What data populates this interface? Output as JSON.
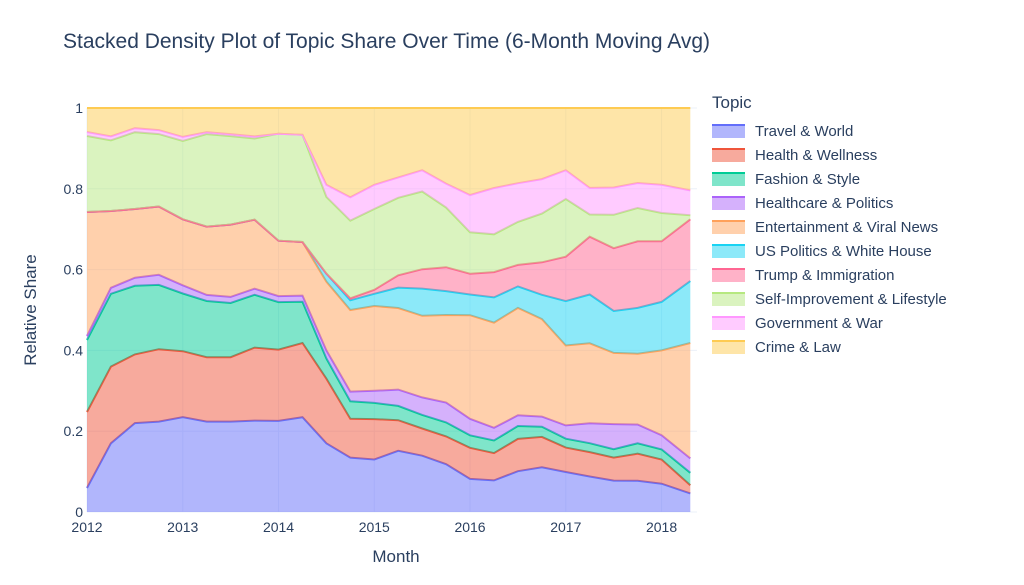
{
  "title": "Stacked Density Plot of Topic Share Over Time (6-Month Moving Avg)",
  "chart_data": {
    "type": "area",
    "stacked": true,
    "normalized": true,
    "title": "Stacked Density Plot of Topic Share Over Time (6-Month Moving Avg)",
    "xlabel": "Month",
    "ylabel": "Relative Share",
    "legend_title": "Topic",
    "legend_position": "right",
    "grid": true,
    "xlim": [
      2012.0,
      2018.37
    ],
    "ylim": [
      0,
      1
    ],
    "x_ticks": [
      "2012",
      "2013",
      "2014",
      "2015",
      "2016",
      "2017",
      "2018"
    ],
    "y_ticks": [
      "0",
      "0.2",
      "0.4",
      "0.6",
      "0.8",
      "1"
    ],
    "x": [
      2012.0,
      2012.25,
      2012.5,
      2012.75,
      2013.0,
      2013.25,
      2013.5,
      2013.75,
      2014.0,
      2014.25,
      2014.5,
      2014.75,
      2015.0,
      2015.25,
      2015.5,
      2015.75,
      2016.0,
      2016.25,
      2016.5,
      2016.75,
      2017.0,
      2017.25,
      2017.5,
      2017.75,
      2018.0,
      2018.3
    ],
    "series": [
      {
        "name": "Travel & World",
        "color": "#636efa",
        "values": [
          0.06,
          0.17,
          0.22,
          0.225,
          0.23,
          0.225,
          0.225,
          0.225,
          0.23,
          0.23,
          0.17,
          0.14,
          0.13,
          0.15,
          0.145,
          0.12,
          0.08,
          0.075,
          0.095,
          0.11,
          0.09,
          0.08,
          0.075,
          0.075,
          0.07,
          0.045
        ]
      },
      {
        "name": "Health & Wellness",
        "color": "#ef553b",
        "values": [
          0.19,
          0.19,
          0.17,
          0.18,
          0.16,
          0.16,
          0.16,
          0.18,
          0.18,
          0.18,
          0.16,
          0.1,
          0.1,
          0.075,
          0.07,
          0.07,
          0.075,
          0.065,
          0.075,
          0.075,
          0.055,
          0.055,
          0.055,
          0.065,
          0.06,
          0.02
        ]
      },
      {
        "name": "Fashion & Style",
        "color": "#00cc96",
        "values": [
          0.18,
          0.18,
          0.17,
          0.16,
          0.14,
          0.14,
          0.135,
          0.13,
          0.12,
          0.1,
          0.05,
          0.045,
          0.04,
          0.035,
          0.035,
          0.035,
          0.03,
          0.03,
          0.03,
          0.025,
          0.02,
          0.02,
          0.02,
          0.025,
          0.025,
          0.03
        ]
      },
      {
        "name": "Healthcare & Politics",
        "color": "#ab63fa",
        "values": [
          0.01,
          0.015,
          0.02,
          0.025,
          0.02,
          0.015,
          0.015,
          0.015,
          0.015,
          0.015,
          0.02,
          0.025,
          0.03,
          0.04,
          0.045,
          0.05,
          0.04,
          0.03,
          0.025,
          0.025,
          0.03,
          0.045,
          0.06,
          0.045,
          0.035,
          0.035
        ]
      },
      {
        "name": "Entertainment & Viral News",
        "color": "#ffa15a",
        "values": [
          0.31,
          0.19,
          0.17,
          0.17,
          0.16,
          0.17,
          0.18,
          0.17,
          0.14,
          0.13,
          0.17,
          0.21,
          0.21,
          0.2,
          0.21,
          0.22,
          0.25,
          0.25,
          0.25,
          0.24,
          0.18,
          0.18,
          0.17,
          0.17,
          0.21,
          0.28
        ]
      },
      {
        "name": "US Politics & White House",
        "color": "#19d3f3",
        "values": [
          0.0,
          0.0,
          0.0,
          0.0,
          0.0,
          0.0,
          0.0,
          0.0,
          0.0,
          0.0,
          0.02,
          0.025,
          0.03,
          0.05,
          0.07,
          0.06,
          0.05,
          0.06,
          0.05,
          0.06,
          0.1,
          0.11,
          0.1,
          0.11,
          0.12,
          0.15
        ]
      },
      {
        "name": "Trump & Immigration",
        "color": "#ff6692",
        "values": [
          0.0,
          0.0,
          0.0,
          0.0,
          0.0,
          0.0,
          0.0,
          0.0,
          0.0,
          0.0,
          0.0,
          0.005,
          0.01,
          0.03,
          0.05,
          0.06,
          0.05,
          0.06,
          0.05,
          0.08,
          0.1,
          0.13,
          0.15,
          0.16,
          0.15,
          0.15
        ]
      },
      {
        "name": "Self-Improvement & Lifestyle",
        "color": "#b6e880",
        "values": [
          0.19,
          0.175,
          0.19,
          0.18,
          0.19,
          0.23,
          0.22,
          0.2,
          0.27,
          0.26,
          0.19,
          0.2,
          0.2,
          0.19,
          0.2,
          0.15,
          0.1,
          0.09,
          0.1,
          0.12,
          0.13,
          0.05,
          0.08,
          0.08,
          0.07,
          0.01
        ]
      },
      {
        "name": "Government & War",
        "color": "#ff97ff",
        "values": [
          0.01,
          0.01,
          0.01,
          0.01,
          0.01,
          0.005,
          0.005,
          0.005,
          0.0,
          0.0,
          0.03,
          0.06,
          0.06,
          0.05,
          0.055,
          0.06,
          0.09,
          0.11,
          0.09,
          0.085,
          0.065,
          0.06,
          0.065,
          0.06,
          0.07,
          0.06
        ]
      },
      {
        "name": "Crime & Law",
        "color": "#fecb52",
        "values": [
          0.06,
          0.07,
          0.05,
          0.055,
          0.07,
          0.06,
          0.065,
          0.07,
          0.065,
          0.065,
          0.19,
          0.23,
          0.19,
          0.17,
          0.16,
          0.19,
          0.21,
          0.19,
          0.175,
          0.175,
          0.14,
          0.18,
          0.19,
          0.18,
          0.19,
          0.2
        ]
      }
    ]
  }
}
